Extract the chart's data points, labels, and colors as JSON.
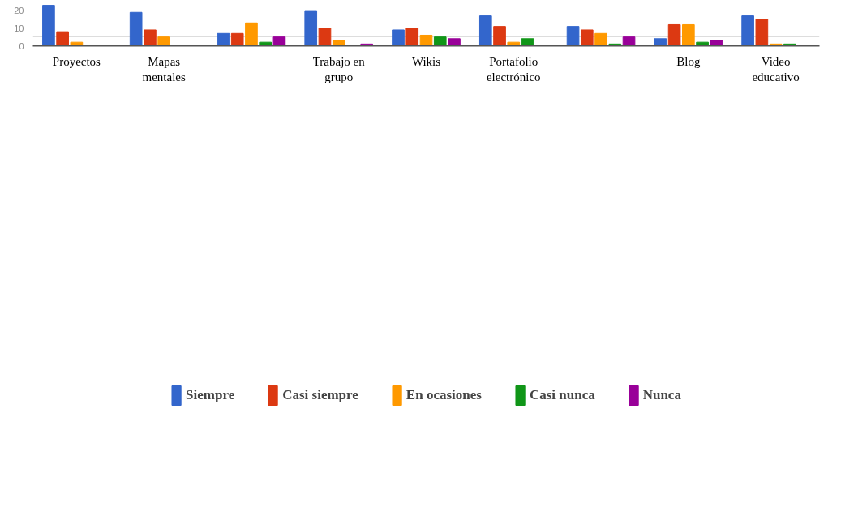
{
  "chart_data": {
    "type": "bar",
    "categories": [
      "Proyectos",
      "Mapas mentales",
      null,
      "Trabajo en grupo",
      "Wikis",
      "Portafolio electrónico",
      null,
      "Blog",
      "Video educativo"
    ],
    "series": [
      {
        "name": "Siempre",
        "color": "#3366cc",
        "values": [
          23,
          19,
          7,
          20,
          9,
          17,
          11,
          4,
          17
        ]
      },
      {
        "name": "Casi siempre",
        "color": "#dc3912",
        "values": [
          8,
          9,
          7,
          10,
          10,
          11,
          9,
          12,
          15
        ]
      },
      {
        "name": "En ocasiones",
        "color": "#ff9900",
        "values": [
          2,
          5,
          13,
          3,
          6,
          2,
          7,
          12,
          1
        ]
      },
      {
        "name": "Casi nunca",
        "color": "#109618",
        "values": [
          0,
          0,
          2,
          0,
          5,
          4,
          1,
          2,
          1
        ]
      },
      {
        "name": "Nunca",
        "color": "#990099",
        "values": [
          0,
          0,
          5,
          1,
          4,
          0,
          5,
          3,
          0
        ]
      }
    ],
    "ylim": [
      0,
      23.5
    ],
    "yticks": [
      0,
      {
        "value": 5,
        "label": null
      },
      10,
      {
        "value": 15,
        "label": null
      },
      20
    ],
    "grid": "y",
    "legend": "bottom"
  }
}
